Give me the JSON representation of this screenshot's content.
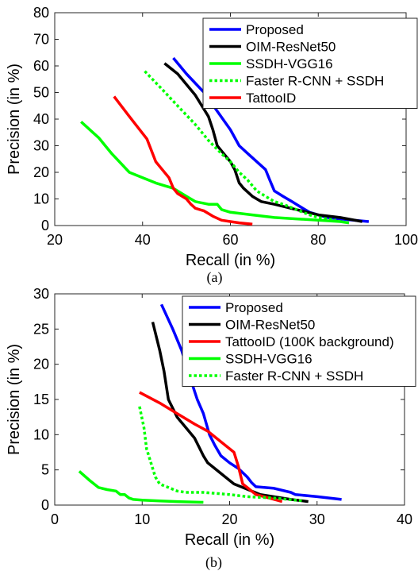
{
  "chart_data": [
    {
      "type": "line",
      "caption": "(a)",
      "xlabel": "Recall (in %)",
      "ylabel": "Precision (in %)",
      "xlim": [
        20,
        100
      ],
      "ylim": [
        0,
        80
      ],
      "xticks": [
        20,
        40,
        60,
        80,
        100
      ],
      "yticks": [
        0,
        10,
        20,
        30,
        40,
        50,
        60,
        70,
        80
      ],
      "grid": false,
      "legend_position": "top-right",
      "series": [
        {
          "name": "Proposed",
          "color": "#0000ff",
          "dash": "solid",
          "x": [
            47,
            50,
            54,
            57,
            60,
            62,
            64,
            66,
            68,
            69,
            70,
            72,
            74,
            76,
            78,
            80,
            82,
            85,
            88,
            91.5
          ],
          "y": [
            63,
            57,
            50,
            43,
            36,
            30,
            27,
            24,
            21,
            17,
            13,
            11,
            9,
            7,
            5,
            4,
            3,
            2.5,
            2,
            1.5
          ]
        },
        {
          "name": "OIM-ResNet50",
          "color": "#000000",
          "dash": "solid",
          "x": [
            45,
            48,
            52,
            55,
            56,
            57,
            58,
            60,
            61,
            62,
            63,
            65,
            67,
            70,
            75,
            80,
            85,
            90
          ],
          "y": [
            61,
            57,
            49,
            41,
            36,
            30,
            28,
            24,
            21,
            16,
            14,
            11,
            9,
            8,
            6,
            4,
            3,
            1.5
          ]
        },
        {
          "name": "SSDH-VGG16",
          "color": "#00ff00",
          "dash": "solid",
          "x": [
            26,
            30,
            33,
            37,
            40,
            43,
            45,
            47,
            50,
            52,
            55,
            57,
            58,
            60,
            65,
            70,
            75,
            80,
            85,
            87
          ],
          "y": [
            39,
            33,
            27,
            20,
            18,
            16,
            15,
            14,
            11,
            9,
            8,
            8,
            6,
            5,
            4,
            3,
            2.5,
            2,
            1.5,
            1
          ]
        },
        {
          "name": "Faster R-CNN + SSDH",
          "color": "#00ff00",
          "dash": "dotted",
          "x": [
            40.5,
            44,
            48,
            52,
            55,
            58,
            60,
            62,
            64,
            66,
            68,
            70,
            72,
            75,
            78,
            80,
            84
          ],
          "y": [
            58,
            52,
            45,
            38,
            32,
            27,
            24,
            20,
            17,
            13,
            11,
            9,
            8,
            6,
            4,
            3,
            2
          ]
        },
        {
          "name": "TattooID",
          "color": "#ff0000",
          "dash": "solid",
          "x": [
            33.5,
            37,
            41,
            43,
            44,
            46,
            47,
            48,
            50,
            51,
            52,
            54,
            55,
            56,
            58,
            60,
            62,
            65
          ],
          "y": [
            48.5,
            41,
            32.5,
            24,
            22,
            18,
            14,
            12,
            10,
            8,
            6.5,
            5.5,
            4.5,
            3.5,
            2,
            1.5,
            1,
            0.5
          ]
        }
      ]
    },
    {
      "type": "line",
      "caption": "(b)",
      "xlabel": "Recall (in %)",
      "ylabel": "Precision (in %)",
      "xlim": [
        0,
        40
      ],
      "ylim": [
        0,
        30
      ],
      "xticks": [
        0,
        10,
        20,
        30,
        40
      ],
      "yticks": [
        0,
        5,
        10,
        15,
        20,
        25,
        30
      ],
      "grid": false,
      "legend_position": "top-right",
      "series": [
        {
          "name": "Proposed",
          "color": "#0000ff",
          "dash": "solid",
          "x": [
            12.2,
            13.5,
            14.5,
            15.5,
            16.3,
            17,
            17.7,
            18.3,
            19,
            20,
            21,
            22,
            22.5,
            23,
            25,
            27,
            27.5,
            30,
            32.8
          ],
          "y": [
            28.5,
            25,
            22,
            18,
            15,
            13,
            10,
            8.5,
            7,
            6,
            5.2,
            4,
            3.2,
            2.6,
            2.4,
            1.8,
            1.5,
            1.2,
            0.8
          ]
        },
        {
          "name": "OIM-ResNet50",
          "color": "#000000",
          "dash": "solid",
          "x": [
            11.2,
            12,
            12.5,
            13,
            14,
            15,
            16,
            17,
            17.5,
            18,
            19,
            20,
            20.5,
            21.5,
            22.5,
            23.5,
            25,
            27,
            29
          ],
          "y": [
            26,
            22,
            19,
            15,
            12.5,
            11,
            9.5,
            7,
            6,
            5.5,
            4.5,
            3.5,
            3,
            2.5,
            2,
            1.5,
            1.2,
            0.8,
            0.5
          ]
        },
        {
          "name": "TattooID (100K background)",
          "color": "#ff0000",
          "dash": "solid",
          "x": [
            9.7,
            12,
            14,
            16,
            17.5,
            19,
            20.5,
            21,
            21.5,
            22,
            23,
            24.5,
            26
          ],
          "y": [
            16,
            14.5,
            13,
            11.5,
            10.5,
            9,
            7.5,
            5.5,
            3,
            2.5,
            1.5,
            1,
            0.5
          ]
        },
        {
          "name": "SSDH-VGG16",
          "color": "#00ff00",
          "dash": "solid",
          "x": [
            2.8,
            4,
            5,
            6,
            7,
            7.5,
            8,
            8.5,
            9,
            10,
            12,
            14,
            17
          ],
          "y": [
            4.8,
            3.5,
            2.5,
            2.2,
            2,
            1.5,
            1.5,
            1,
            0.8,
            0.7,
            0.6,
            0.5,
            0.4
          ]
        },
        {
          "name": "Faster R-CNN + SSDH",
          "color": "#00ff00",
          "dash": "dotted",
          "x": [
            9.7,
            10.2,
            10.5,
            11,
            11.5,
            12,
            13,
            14,
            15,
            17,
            20,
            22,
            25,
            28.5
          ],
          "y": [
            14,
            11,
            8,
            6,
            4,
            3,
            2.5,
            2,
            1.8,
            1.8,
            1.5,
            1.2,
            1,
            0.6
          ]
        }
      ]
    }
  ]
}
